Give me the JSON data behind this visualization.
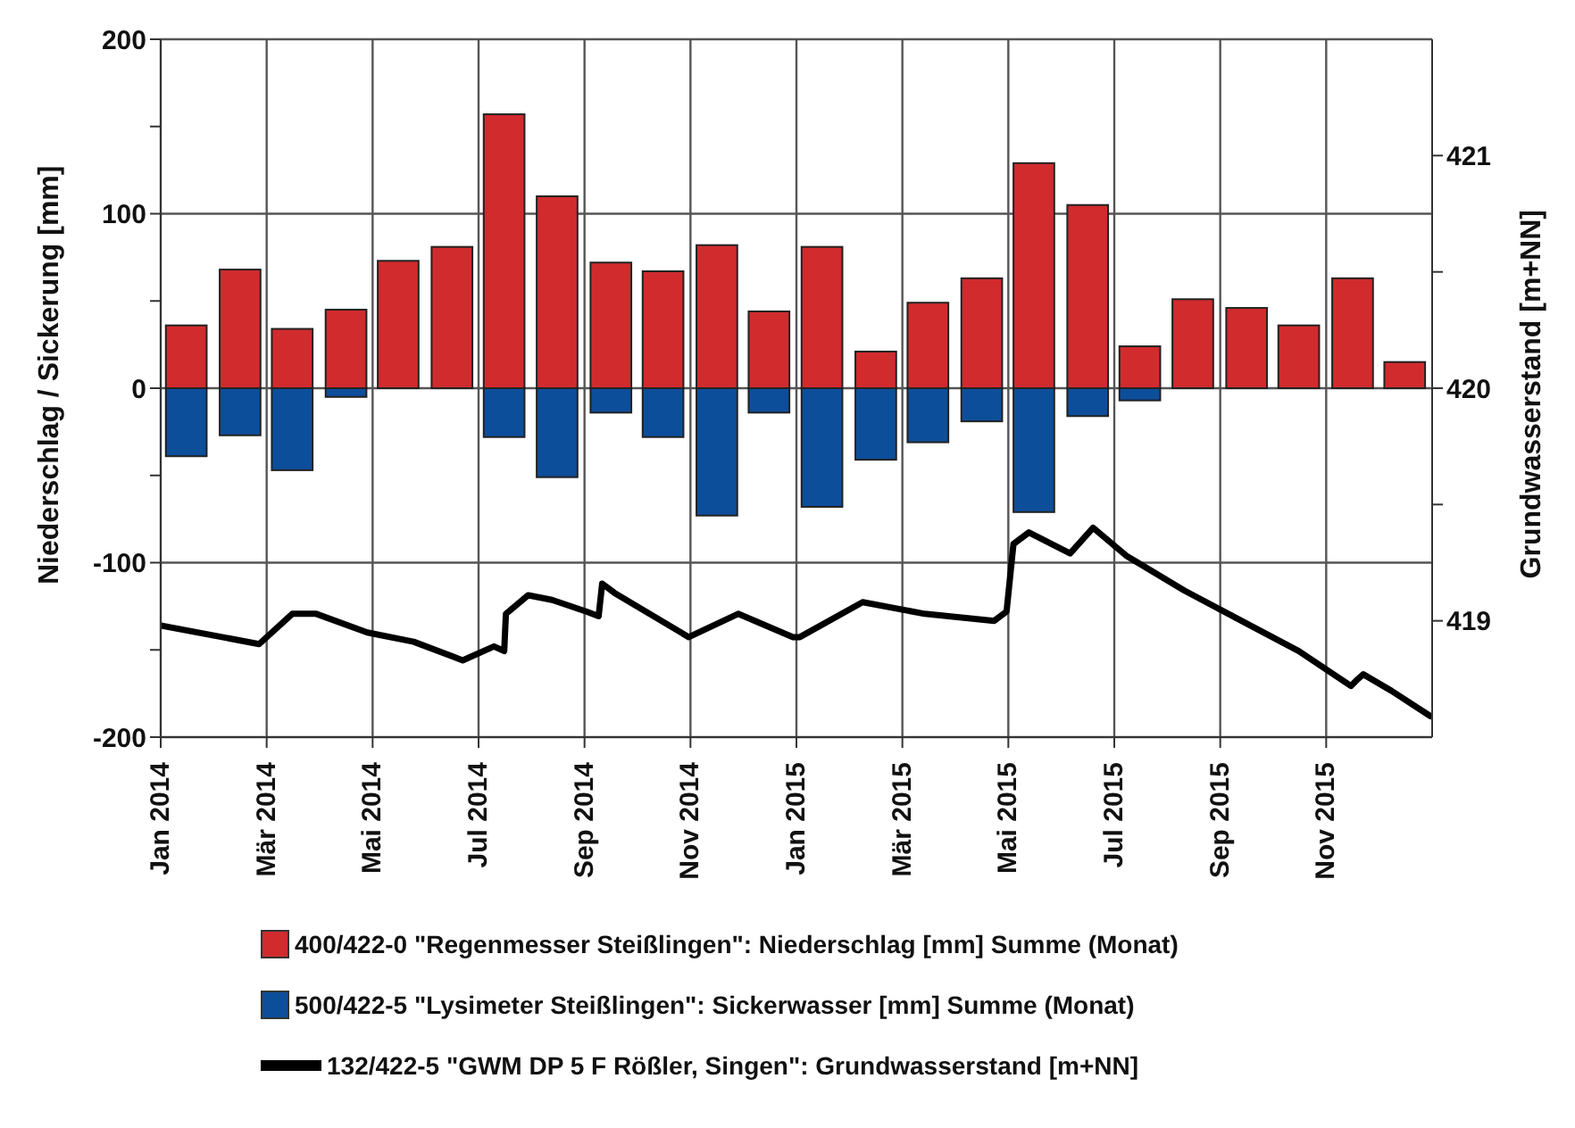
{
  "chart_data": {
    "type": "bar",
    "stacked": true,
    "ylabel": "Niederschlag / Sickerung [mm]",
    "y2label": "Grundwasserstand [m+NN]",
    "x": [
      "2014-01-16",
      "2014-02-15",
      "2014-03-16",
      "2014-04-16",
      "2014-05-16",
      "2014-06-16",
      "2014-07-16",
      "2014-08-16",
      "2014-09-16",
      "2014-10-16",
      "2014-11-16",
      "2014-12-16",
      "2015-01-16",
      "2015-02-15",
      "2015-03-16",
      "2015-04-16",
      "2015-05-16",
      "2015-06-16",
      "2015-07-16",
      "2015-08-16",
      "2015-09-16",
      "2015-10-16",
      "2015-11-16",
      "2015-12-16"
    ],
    "xlim": [
      "2014-01-01",
      "2016-01-01"
    ],
    "xticks": [
      {
        "value": "2014-01-01",
        "label": "Jan 2014"
      },
      {
        "value": "2014-03-01",
        "label": "Mär 2014"
      },
      {
        "value": "2014-05-01",
        "label": "Mai 2014"
      },
      {
        "value": "2014-07-01",
        "label": "Jul 2014"
      },
      {
        "value": "2014-09-01",
        "label": "Sep 2014"
      },
      {
        "value": "2014-11-01",
        "label": "Nov 2014"
      },
      {
        "value": "2015-01-01",
        "label": "Jan 2015"
      },
      {
        "value": "2015-03-01",
        "label": "Mär 2015"
      },
      {
        "value": "2015-05-01",
        "label": "Mai 2015"
      },
      {
        "value": "2015-07-01",
        "label": "Jul 2015"
      },
      {
        "value": "2015-09-01",
        "label": "Sep 2015"
      },
      {
        "value": "2015-11-01",
        "label": "Nov 2015"
      }
    ],
    "ylim": [
      -200,
      200
    ],
    "yticks": [
      -200,
      {
        "value": -150,
        "label": null
      },
      -100,
      {
        "value": -50,
        "label": null
      },
      0,
      {
        "value": 50,
        "label": null
      },
      100,
      {
        "value": 150,
        "label": null
      },
      200
    ],
    "y2lim": [
      418.5,
      421.5
    ],
    "y2ticks": [
      419,
      {
        "value": 419.5,
        "label": null
      },
      420,
      {
        "value": 420.5,
        "label": null
      },
      421
    ],
    "grid": true,
    "legend": "bottom",
    "series": [
      {
        "name": "400/422-0 \"Regenmesser Steißlingen\": Niederschlag [mm] Summe (Monat)",
        "color": "#d12b2e",
        "values": [
          36,
          68,
          34,
          45,
          73,
          81,
          157,
          110,
          72,
          67,
          82,
          44,
          81,
          21,
          49,
          63,
          129,
          105,
          24,
          51,
          46,
          36,
          63,
          15
        ]
      },
      {
        "name": "500/422-5 \"Lysimeter Steißlingen\": Sickerwasser [mm] Summe (Monat)",
        "color": "#0d4e9b",
        "values": [
          -39,
          -27,
          -47,
          -5,
          0,
          0,
          -28,
          -51,
          -14,
          -28,
          -73,
          -14,
          -68,
          -41,
          -31,
          -19,
          -71,
          -16,
          -7,
          0,
          0,
          0,
          0,
          0
        ]
      },
      {
        "name": "132/422-5 \"GWM DP 5 F Rößler, Singen\": Grundwasserstand [m+NN]",
        "type": "line",
        "axis": "y2",
        "color": "#000000",
        "line_style": "solid",
        "marker": "none",
        "x": [
          "2014-01-01",
          "2014-02-25",
          "2014-03-16",
          "2014-03-30",
          "2014-04-28",
          "2014-05-25",
          "2014-06-22",
          "2014-07-10",
          "2014-07-16",
          "2014-07-17",
          "2014-07-30",
          "2014-08-13",
          "2014-09-02",
          "2014-09-09",
          "2014-09-11",
          "2014-09-18",
          "2014-10-31",
          "2014-11-28",
          "2014-12-30",
          "2015-01-03",
          "2015-02-08",
          "2015-03-14",
          "2015-04-23",
          "2015-04-30",
          "2015-05-04",
          "2015-05-13",
          "2015-06-06",
          "2015-06-19",
          "2015-07-08",
          "2015-08-11",
          "2015-09-13",
          "2015-10-16",
          "2015-11-15",
          "2015-11-19",
          "2015-11-22",
          "2015-12-08",
          "2015-12-31"
        ],
        "values": [
          418.98,
          418.9,
          419.03,
          419.03,
          418.95,
          418.91,
          418.83,
          418.89,
          418.87,
          419.03,
          419.11,
          419.09,
          419.04,
          419.02,
          419.16,
          419.12,
          418.93,
          419.03,
          418.93,
          418.93,
          419.08,
          419.03,
          419.0,
          419.04,
          419.33,
          419.38,
          419.29,
          419.4,
          419.28,
          419.13,
          419.0,
          418.87,
          418.72,
          418.75,
          418.77,
          418.7,
          418.59
        ]
      }
    ]
  }
}
